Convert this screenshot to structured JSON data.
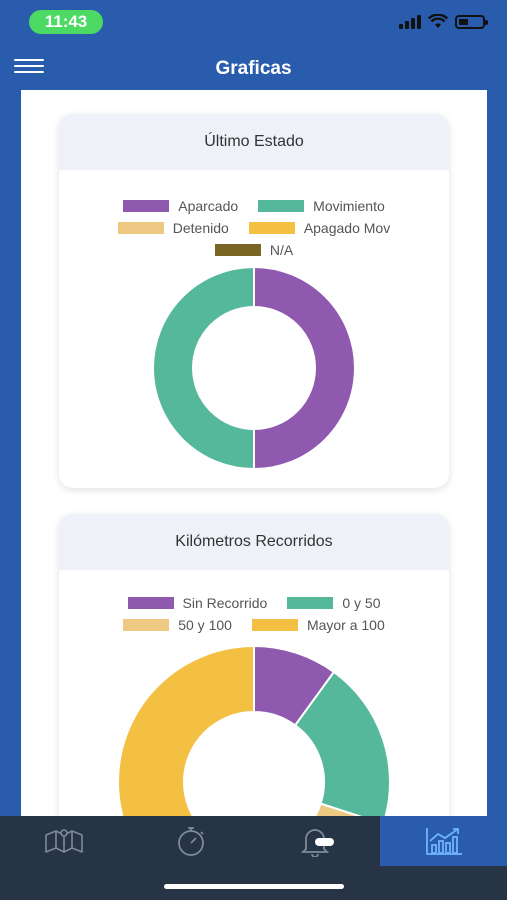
{
  "status": {
    "time": "11:43"
  },
  "header": {
    "title": "Graficas"
  },
  "cards": [
    {
      "title": "Último Estado",
      "legend": [
        {
          "label": "Aparcado",
          "color": "#9059b0"
        },
        {
          "label": "Movimiento",
          "color": "#55b89b"
        },
        {
          "label": "Detenido",
          "color": "#eec983"
        },
        {
          "label": "Apagado Mov",
          "color": "#f4c043"
        },
        {
          "label": "N/A",
          "color": "#7a6524"
        }
      ]
    },
    {
      "title": "Kilómetros Recorridos",
      "legend": [
        {
          "label": "Sin Recorrido",
          "color": "#9059b0"
        },
        {
          "label": "0 y 50",
          "color": "#55b89b"
        },
        {
          "label": "50 y 100",
          "color": "#eec983"
        },
        {
          "label": "Mayor a 100",
          "color": "#f4c043"
        }
      ]
    }
  ],
  "chart_data": [
    {
      "type": "pie",
      "title": "Último Estado",
      "categories": [
        "Aparcado",
        "Movimiento",
        "Detenido",
        "Apagado Mov",
        "N/A"
      ],
      "values": [
        50,
        50,
        0,
        0,
        0
      ],
      "colors": [
        "#9059b0",
        "#55b89b",
        "#eec983",
        "#f4c043",
        "#7a6524"
      ],
      "legend": "top"
    },
    {
      "type": "pie",
      "title": "Kilómetros Recorridos",
      "categories": [
        "Sin Recorrido",
        "0 y 50",
        "50 y 100",
        "Mayor a 100"
      ],
      "values": [
        10,
        20,
        20,
        50
      ],
      "colors": [
        "#9059b0",
        "#55b89b",
        "#eec983",
        "#f4c043"
      ],
      "legend": "top"
    }
  ],
  "tabs": [
    {
      "name": "map",
      "icon": "map-icon"
    },
    {
      "name": "stopwatch",
      "icon": "stopwatch-icon"
    },
    {
      "name": "alerts",
      "icon": "bell-icon"
    },
    {
      "name": "charts",
      "icon": "chart-icon",
      "active": true
    }
  ]
}
